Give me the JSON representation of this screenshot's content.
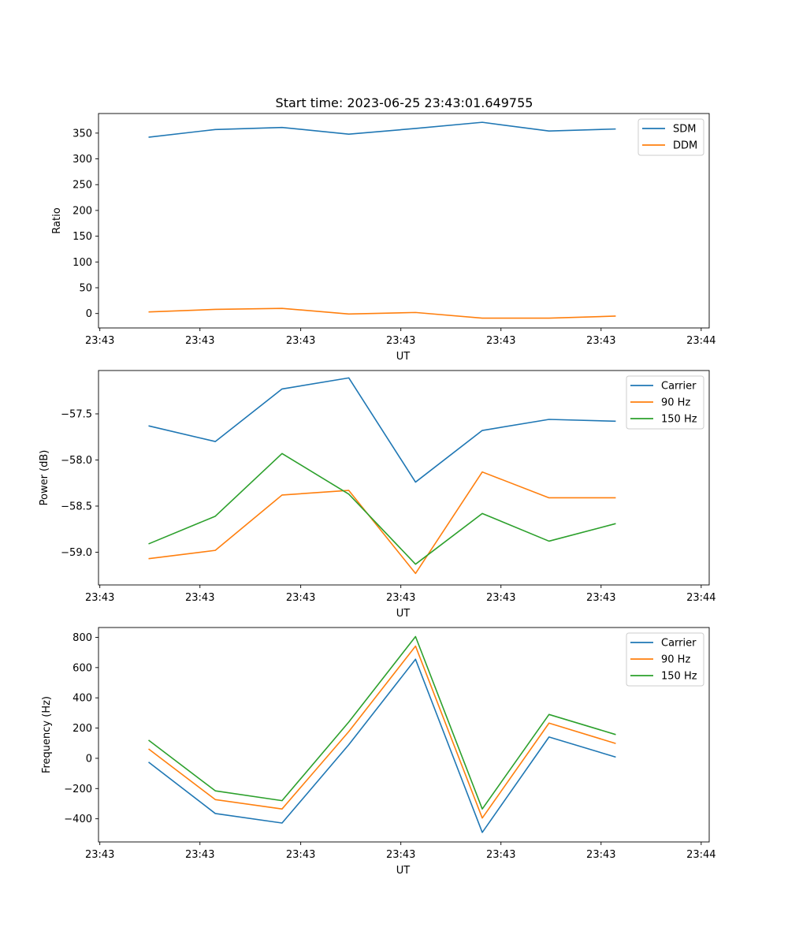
{
  "figure": {
    "title": "Start time: 2023-06-25 23:43:01.649755"
  },
  "chart_data": [
    {
      "type": "line",
      "ylabel": "Ratio",
      "xlabel": "UT",
      "x": [
        0,
        1,
        2,
        3,
        4,
        5,
        6,
        7
      ],
      "xlim": [
        -0.75,
        8.4
      ],
      "xticks": [
        -0.73,
        0.77,
        2.28,
        3.78,
        5.28,
        6.78,
        8.28
      ],
      "xtick_labels": [
        "23:43",
        "23:43",
        "23:43",
        "23:43",
        "23:43",
        "23:43",
        "23:44"
      ],
      "ylim": [
        -28,
        388
      ],
      "yticks": [
        0,
        50,
        100,
        150,
        200,
        250,
        300,
        350
      ],
      "legend_position": "upper right",
      "series": [
        {
          "name": "SDM",
          "color": "#1f77b4",
          "values": [
            342,
            357,
            361,
            348,
            359,
            371,
            354,
            358
          ]
        },
        {
          "name": "DDM",
          "color": "#ff7f0e",
          "values": [
            3,
            8,
            10,
            -1,
            2,
            -9,
            -9,
            -5
          ]
        }
      ]
    },
    {
      "type": "line",
      "ylabel": "Power (dB)",
      "xlabel": "UT",
      "x": [
        0,
        1,
        2,
        3,
        4,
        5,
        6,
        7
      ],
      "xlim": [
        -0.75,
        8.4
      ],
      "xticks": [
        -0.73,
        0.77,
        2.28,
        3.78,
        5.28,
        6.78,
        8.28
      ],
      "xtick_labels": [
        "23:43",
        "23:43",
        "23:43",
        "23:43",
        "23:43",
        "23:43",
        "23:44"
      ],
      "ylim": [
        -59.355,
        -57.03
      ],
      "yticks": [
        -59.0,
        -58.5,
        -58.0,
        -57.5
      ],
      "ytick_labels": [
        "−59.0",
        "−58.5",
        "−58.0",
        "−57.5"
      ],
      "legend_position": "upper right",
      "series": [
        {
          "name": "Carrier",
          "color": "#1f77b4",
          "values": [
            -57.63,
            -57.8,
            -57.23,
            -57.11,
            -58.24,
            -57.68,
            -57.56,
            -57.58
          ]
        },
        {
          "name": "90 Hz",
          "color": "#ff7f0e",
          "values": [
            -59.07,
            -58.98,
            -58.38,
            -58.33,
            -59.23,
            -58.13,
            -58.41,
            -58.41
          ]
        },
        {
          "name": "150 Hz",
          "color": "#2ca02c",
          "values": [
            -58.91,
            -58.61,
            -57.93,
            -58.37,
            -59.13,
            -58.58,
            -58.88,
            -58.69
          ]
        }
      ]
    },
    {
      "type": "line",
      "ylabel": "Frequency (Hz)",
      "xlabel": "UT",
      "x": [
        0,
        1,
        2,
        3,
        4,
        5,
        6,
        7
      ],
      "xlim": [
        -0.75,
        8.4
      ],
      "xticks": [
        -0.73,
        0.77,
        2.28,
        3.78,
        5.28,
        6.78,
        8.28
      ],
      "xtick_labels": [
        "23:43",
        "23:43",
        "23:43",
        "23:43",
        "23:43",
        "23:43",
        "23:44"
      ],
      "ylim": [
        -553,
        865
      ],
      "yticks": [
        -400,
        -200,
        0,
        200,
        400,
        600,
        800
      ],
      "ytick_labels": [
        "−400",
        "−200",
        "0",
        "200",
        "400",
        "600",
        "800"
      ],
      "legend_position": "upper right",
      "series": [
        {
          "name": "Carrier",
          "color": "#1f77b4",
          "values": [
            -25,
            -365,
            -428,
            90,
            655,
            -490,
            141,
            8
          ]
        },
        {
          "name": "90 Hz",
          "color": "#ff7f0e",
          "values": [
            62,
            -273,
            -335,
            177,
            742,
            -395,
            233,
            98
          ]
        },
        {
          "name": "150 Hz",
          "color": "#2ca02c",
          "values": [
            120,
            -215,
            -280,
            240,
            805,
            -335,
            290,
            157
          ]
        }
      ]
    }
  ]
}
